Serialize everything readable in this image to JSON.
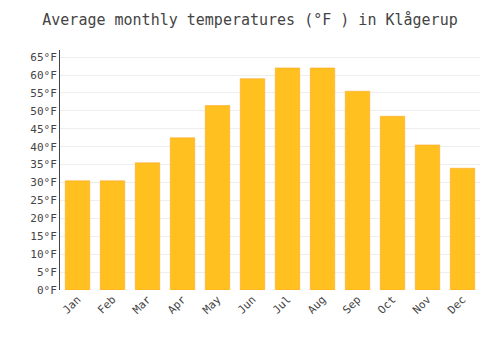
{
  "chart_data": {
    "type": "bar",
    "title": "Average monthly temperatures (°F ) in Klågerup",
    "categories": [
      "Jan",
      "Feb",
      "Mar",
      "Apr",
      "May",
      "Jun",
      "Jul",
      "Aug",
      "Sep",
      "Oct",
      "Nov",
      "Dec"
    ],
    "values": [
      30.5,
      30.5,
      35.5,
      42.5,
      51.5,
      59.0,
      62.0,
      62.0,
      55.5,
      48.5,
      40.5,
      34.0
    ],
    "color": "#FFC020",
    "ylim": [
      0,
      67
    ],
    "yticks": [
      {
        "value": 0,
        "label": "0°F"
      },
      {
        "value": 5,
        "label": "5°F"
      },
      {
        "value": 10,
        "label": "10°F"
      },
      {
        "value": 15,
        "label": "15°F"
      },
      {
        "value": 20,
        "label": "20°F"
      },
      {
        "value": 25,
        "label": "25°F"
      },
      {
        "value": 30,
        "label": "30°F"
      },
      {
        "value": 35,
        "label": "35°F"
      },
      {
        "value": 40,
        "label": "40°F"
      },
      {
        "value": 45,
        "label": "45°F"
      },
      {
        "value": 50,
        "label": "50°F"
      },
      {
        "value": 55,
        "label": "55°F"
      },
      {
        "value": 60,
        "label": "60°F"
      },
      {
        "value": 65,
        "label": "65°F"
      }
    ],
    "grid": true
  }
}
